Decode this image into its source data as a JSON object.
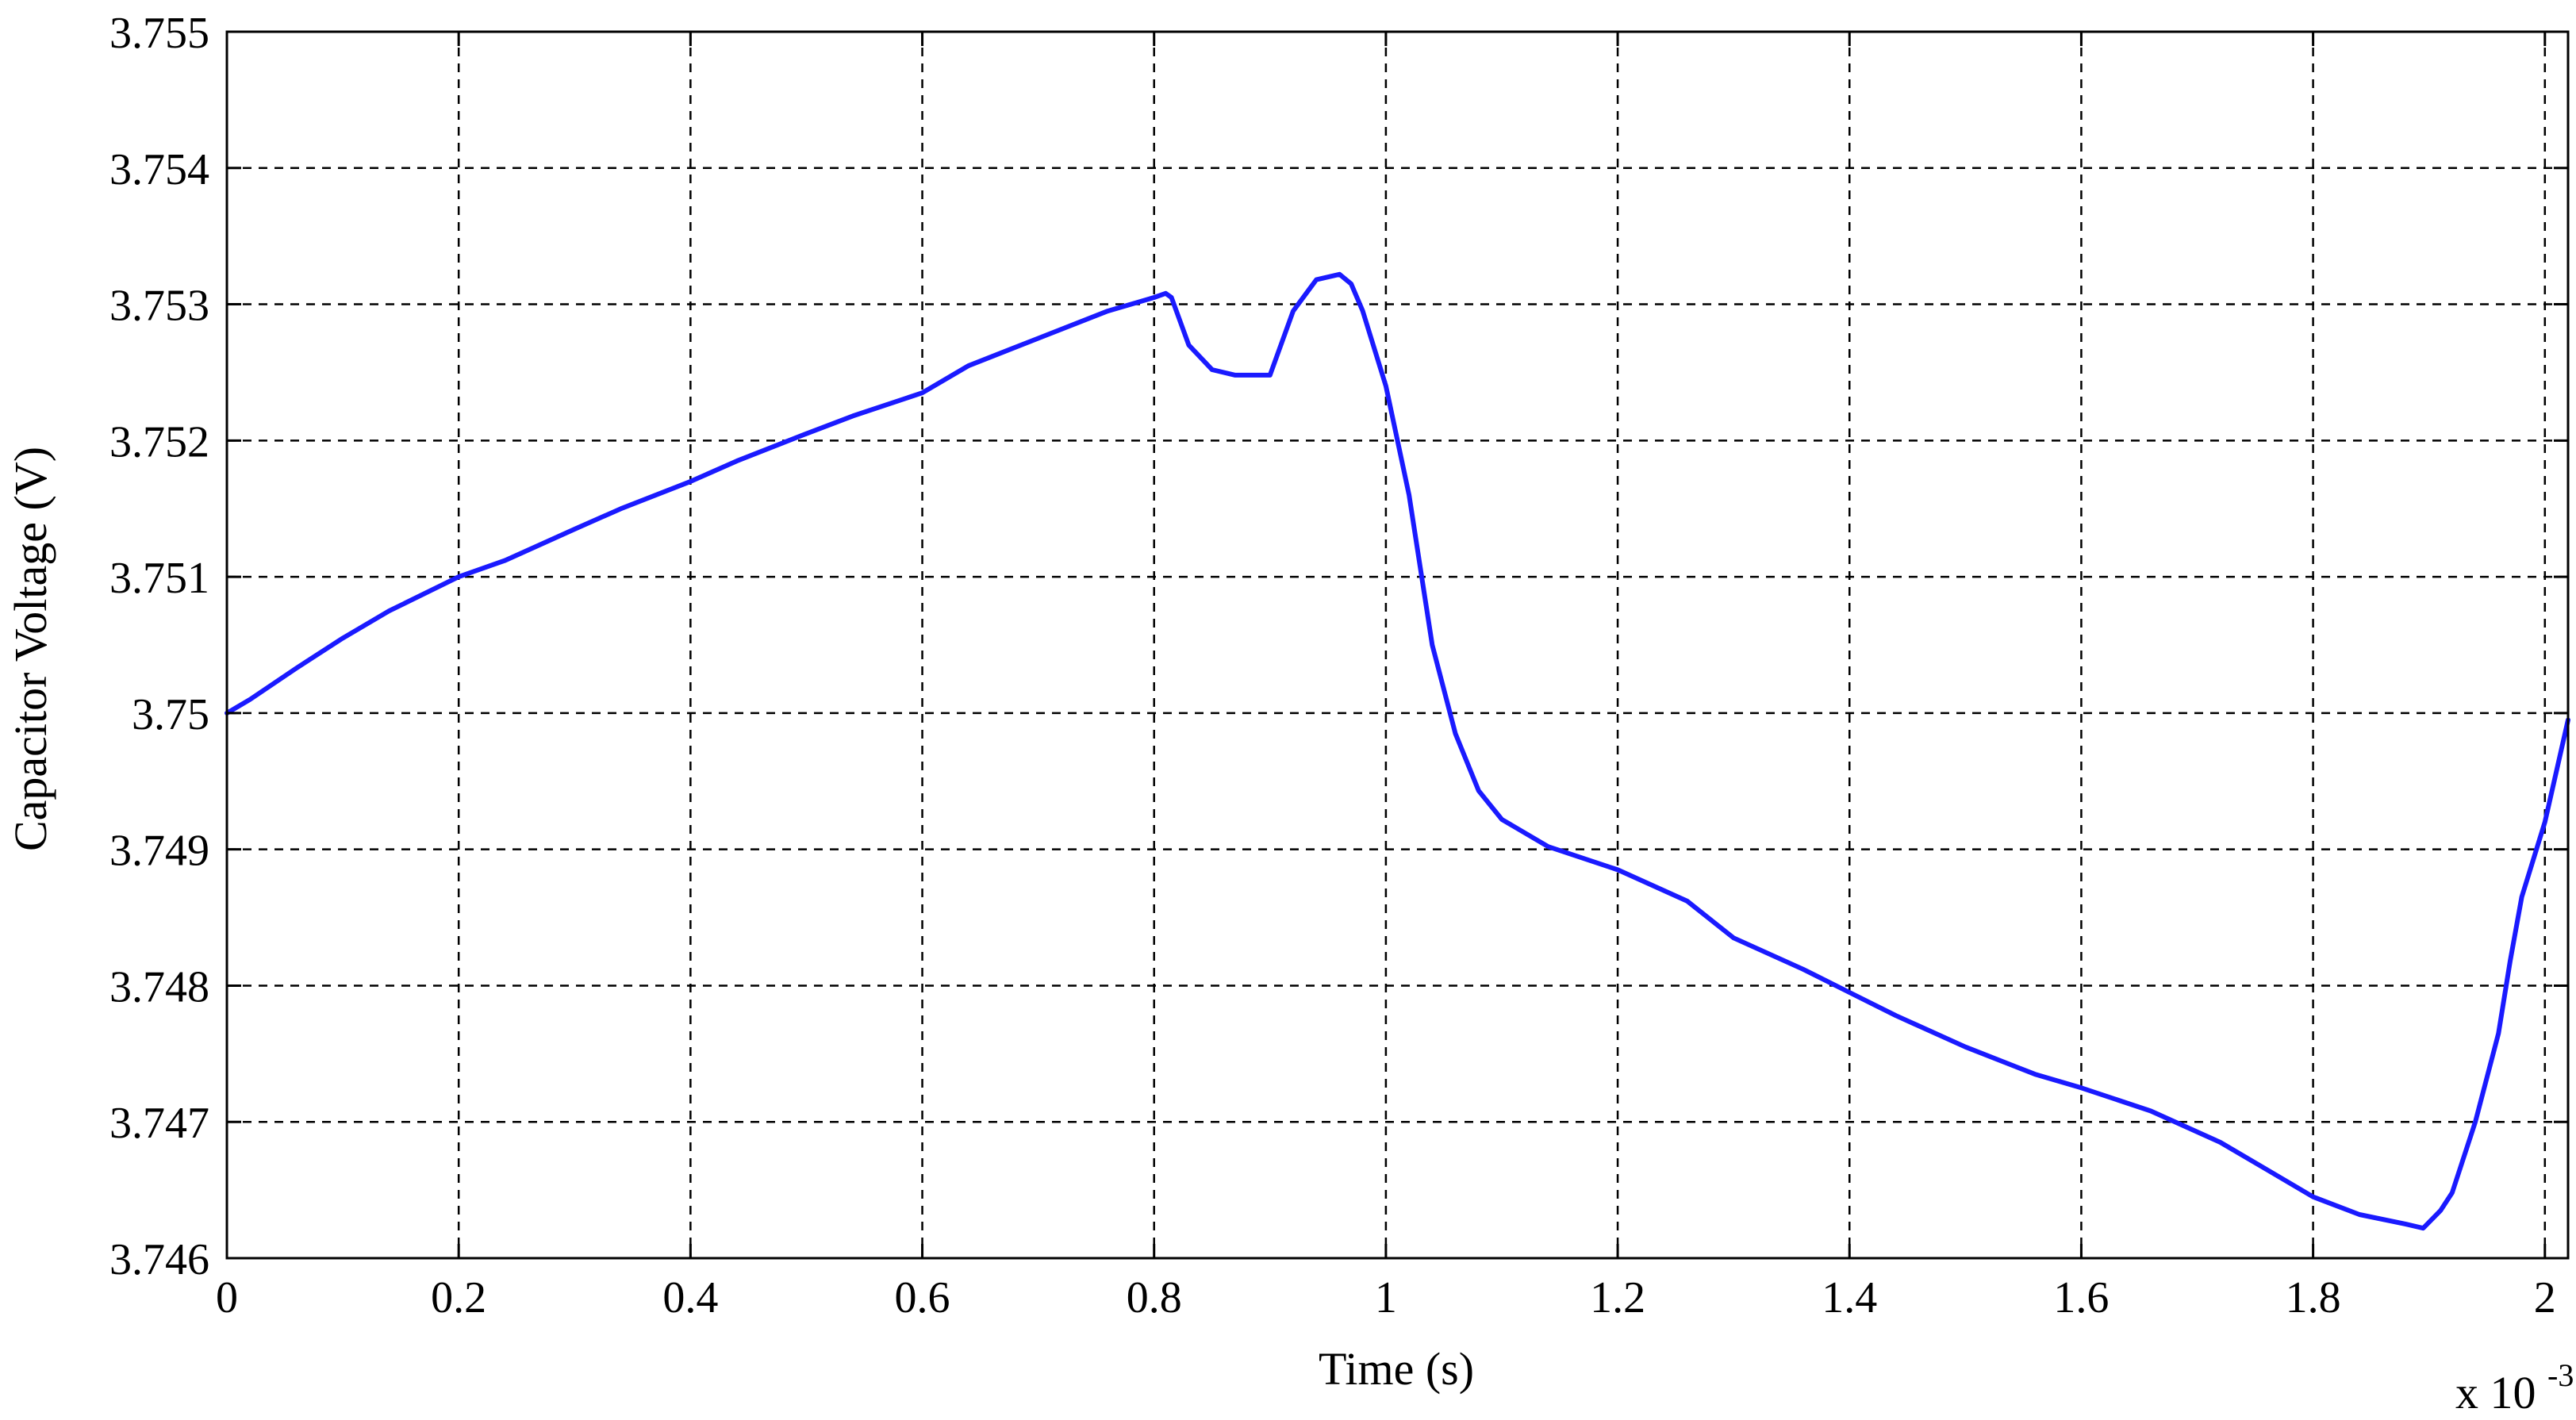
{
  "chart_data": {
    "type": "line",
    "xlabel": "Time (s)",
    "ylabel": "Capacitor Voltage (V)",
    "x_exponent_label": "x 10",
    "x_exponent_power": "-3",
    "xlim": [
      0,
      2.02
    ],
    "ylim": [
      3.746,
      3.755
    ],
    "x_ticks": [
      0,
      0.2,
      0.4,
      0.6,
      0.8,
      1,
      1.2,
      1.4,
      1.6,
      1.8,
      2
    ],
    "x_tick_labels": [
      "0",
      "0.2",
      "0.4",
      "0.6",
      "0.8",
      "1",
      "1.2",
      "1.4",
      "1.6",
      "1.8",
      "2"
    ],
    "y_ticks": [
      3.746,
      3.747,
      3.748,
      3.749,
      3.75,
      3.751,
      3.752,
      3.753,
      3.754,
      3.755
    ],
    "y_tick_labels": [
      "3.746",
      "3.747",
      "3.748",
      "3.749",
      "3.75",
      "3.751",
      "3.752",
      "3.753",
      "3.754",
      "3.755"
    ],
    "grid": true,
    "line_color": "#1a1aff",
    "series": [
      {
        "x": [
          0,
          0.02,
          0.06,
          0.1,
          0.14,
          0.2,
          0.24,
          0.3,
          0.34,
          0.4,
          0.44,
          0.5,
          0.54,
          0.6,
          0.64,
          0.7,
          0.76,
          0.8,
          0.81,
          0.815,
          0.83,
          0.85,
          0.87,
          0.9,
          0.92,
          0.94,
          0.96,
          0.97,
          0.98,
          1.0,
          1.02,
          1.04,
          1.06,
          1.08,
          1.1,
          1.14,
          1.2,
          1.26,
          1.3,
          1.36,
          1.4,
          1.44,
          1.5,
          1.56,
          1.6,
          1.66,
          1.72,
          1.76,
          1.8,
          1.84,
          1.88,
          1.895,
          1.91,
          1.92,
          1.94,
          1.96,
          1.97,
          1.98,
          2.0,
          2.02
        ],
        "y": [
          3.75,
          3.7501,
          3.75033,
          3.75055,
          3.75075,
          3.751,
          3.75112,
          3.75135,
          3.7515,
          3.7517,
          3.75185,
          3.75205,
          3.75218,
          3.75235,
          3.75255,
          3.75275,
          3.75295,
          3.75305,
          3.75308,
          3.75305,
          3.7527,
          3.75252,
          3.75248,
          3.75248,
          3.75295,
          3.75318,
          3.75322,
          3.75315,
          3.75295,
          3.7524,
          3.7516,
          3.7505,
          3.74985,
          3.74943,
          3.74922,
          3.74902,
          3.74885,
          3.74862,
          3.74835,
          3.74812,
          3.74795,
          3.74778,
          3.74755,
          3.74735,
          3.74725,
          3.74708,
          3.74685,
          3.74665,
          3.74645,
          3.74632,
          3.74625,
          3.74622,
          3.74635,
          3.74648,
          3.747,
          3.74765,
          3.74818,
          3.74865,
          3.7492,
          3.74995
        ]
      }
    ]
  }
}
